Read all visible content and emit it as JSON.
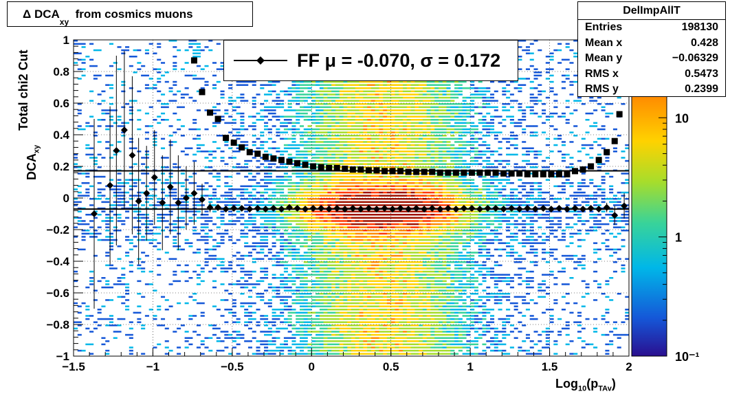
{
  "title": {
    "main": "Δ DCA",
    "sub": "xy",
    "rest": "from cosmics muons"
  },
  "stats": {
    "name": "DelImpAllT",
    "rows": [
      {
        "k": "Entries",
        "v": "198130"
      },
      {
        "k": "Mean x",
        "v": "0.428"
      },
      {
        "k": "Mean y",
        "v": "−0.06329"
      },
      {
        "k": "RMS x",
        "v": "0.5473"
      },
      {
        "k": "RMS y",
        "v": "0.2399"
      }
    ]
  },
  "legend": {
    "text": "FF μ = -0.070, σ =   0.172"
  },
  "axis_labels": {
    "x_main": "Log",
    "x_sub1": "10",
    "x_mid": "(p",
    "x_sub2": "TAv",
    "x_end": ")",
    "y_main": "DCA",
    "y_sub": "xy",
    "y_extra": "Total chi2 Cut"
  },
  "chart_data": {
    "type": "heatmap",
    "xlim": [
      -1.5,
      2.0
    ],
    "ylim": [
      -1.0,
      1.0
    ],
    "x_ticks": [
      "−1.5",
      "−1",
      "−0.5",
      "0",
      "0.5",
      "1",
      "1.5",
      "2"
    ],
    "x_tick_values": [
      -1.5,
      -1,
      -0.5,
      0,
      0.5,
      1,
      1.5,
      2
    ],
    "y_ticks": [
      "−1",
      "−0.8",
      "−0.6",
      "−0.4",
      "−0.2",
      "0",
      "0.2",
      "0.4",
      "0.6",
      "0.8",
      "1"
    ],
    "y_tick_values": [
      -1,
      -0.8,
      -0.6,
      -0.4,
      -0.2,
      0,
      0.2,
      0.4,
      0.6,
      0.8,
      1
    ],
    "z_scale": "log",
    "z_ticks": [
      "10",
      "1",
      "10⁻¹"
    ],
    "z_tick_values": [
      10,
      1,
      0.1
    ],
    "grid": true,
    "color_palette": [
      "#2a0f8f",
      "#1557d8",
      "#00b7e8",
      "#38d39a",
      "#a6dd2c",
      "#ffd200",
      "#ff8c00",
      "#ff3a00",
      "#a01200"
    ],
    "fit_lines": {
      "mean": -0.07,
      "sigma": 0.172
    },
    "series": [
      {
        "name": "FF",
        "marker": "diamond",
        "points": [
          [
            -1.37,
            -0.1,
            0.6
          ],
          [
            -1.27,
            0.08,
            0.5
          ],
          [
            -1.23,
            0.3,
            0.6
          ],
          [
            -1.18,
            0.43,
            0.5
          ],
          [
            -1.13,
            0.27,
            0.5
          ],
          [
            -1.09,
            -0.02,
            0.4
          ],
          [
            -1.04,
            0.03,
            0.3
          ],
          [
            -0.99,
            0.13,
            0.3
          ],
          [
            -0.94,
            -0.03,
            0.3
          ],
          [
            -0.89,
            0.07,
            0.3
          ],
          [
            -0.84,
            -0.03,
            0.3
          ],
          [
            -0.79,
            0.0,
            0.2
          ],
          [
            -0.74,
            0.03,
            0.2
          ],
          [
            -0.69,
            -0.01,
            0.1
          ],
          [
            -0.64,
            -0.06,
            0.03
          ],
          [
            -0.59,
            -0.06,
            0.02
          ],
          [
            -0.54,
            -0.07,
            0.01
          ],
          [
            -0.49,
            -0.065,
            0.01
          ],
          [
            -0.44,
            -0.065,
            0.01
          ],
          [
            -0.39,
            -0.07,
            0.01
          ],
          [
            -0.34,
            -0.065,
            0.01
          ],
          [
            -0.29,
            -0.07,
            0.01
          ],
          [
            -0.24,
            -0.065,
            0.01
          ],
          [
            -0.19,
            -0.07,
            0.01
          ],
          [
            -0.14,
            -0.06,
            0.01
          ],
          [
            -0.09,
            -0.065,
            0.01
          ],
          [
            -0.04,
            -0.07,
            0.01
          ],
          [
            0.01,
            -0.065,
            0.01
          ],
          [
            0.06,
            -0.065,
            0.01
          ],
          [
            0.11,
            -0.07,
            0.01
          ],
          [
            0.16,
            -0.065,
            0.01
          ],
          [
            0.21,
            -0.07,
            0.01
          ],
          [
            0.26,
            -0.065,
            0.01
          ],
          [
            0.31,
            -0.07,
            0.01
          ],
          [
            0.36,
            -0.065,
            0.01
          ],
          [
            0.41,
            -0.07,
            0.01
          ],
          [
            0.46,
            -0.065,
            0.01
          ],
          [
            0.51,
            -0.07,
            0.01
          ],
          [
            0.56,
            -0.065,
            0.01
          ],
          [
            0.61,
            -0.07,
            0.01
          ],
          [
            0.66,
            -0.065,
            0.01
          ],
          [
            0.71,
            -0.07,
            0.01
          ],
          [
            0.76,
            -0.065,
            0.01
          ],
          [
            0.81,
            -0.07,
            0.01
          ],
          [
            0.86,
            -0.065,
            0.01
          ],
          [
            0.91,
            -0.07,
            0.01
          ],
          [
            0.96,
            -0.065,
            0.01
          ],
          [
            1.01,
            -0.065,
            0.01
          ],
          [
            1.06,
            -0.07,
            0.01
          ],
          [
            1.11,
            -0.065,
            0.01
          ],
          [
            1.16,
            -0.065,
            0.01
          ],
          [
            1.21,
            -0.07,
            0.01
          ],
          [
            1.26,
            -0.065,
            0.01
          ],
          [
            1.31,
            -0.07,
            0.01
          ],
          [
            1.36,
            -0.065,
            0.01
          ],
          [
            1.41,
            -0.07,
            0.01
          ],
          [
            1.46,
            -0.065,
            0.01
          ],
          [
            1.51,
            -0.07,
            0.01
          ],
          [
            1.56,
            -0.065,
            0.01
          ],
          [
            1.61,
            -0.07,
            0.01
          ],
          [
            1.66,
            -0.065,
            0.02
          ],
          [
            1.71,
            -0.07,
            0.02
          ],
          [
            1.76,
            -0.065,
            0.02
          ],
          [
            1.81,
            -0.07,
            0.02
          ],
          [
            1.86,
            -0.06,
            0.03
          ],
          [
            1.91,
            -0.11,
            0.06
          ],
          [
            1.97,
            -0.05,
            0.08
          ]
        ]
      },
      {
        "name": "sigma",
        "marker": "square",
        "points": [
          [
            -0.74,
            0.87
          ],
          [
            -0.69,
            0.67
          ],
          [
            -0.64,
            0.54
          ],
          [
            -0.59,
            0.5
          ],
          [
            -0.54,
            0.38
          ],
          [
            -0.49,
            0.35
          ],
          [
            -0.44,
            0.32
          ],
          [
            -0.39,
            0.29
          ],
          [
            -0.34,
            0.28
          ],
          [
            -0.29,
            0.26
          ],
          [
            -0.24,
            0.25
          ],
          [
            -0.19,
            0.24
          ],
          [
            -0.14,
            0.23
          ],
          [
            -0.09,
            0.22
          ],
          [
            -0.04,
            0.21
          ],
          [
            0.01,
            0.2
          ],
          [
            0.06,
            0.195
          ],
          [
            0.11,
            0.19
          ],
          [
            0.16,
            0.19
          ],
          [
            0.21,
            0.185
          ],
          [
            0.26,
            0.18
          ],
          [
            0.31,
            0.18
          ],
          [
            0.36,
            0.175
          ],
          [
            0.41,
            0.175
          ],
          [
            0.46,
            0.17
          ],
          [
            0.51,
            0.17
          ],
          [
            0.56,
            0.17
          ],
          [
            0.61,
            0.165
          ],
          [
            0.66,
            0.165
          ],
          [
            0.71,
            0.165
          ],
          [
            0.76,
            0.165
          ],
          [
            0.81,
            0.16
          ],
          [
            0.86,
            0.16
          ],
          [
            0.91,
            0.16
          ],
          [
            0.96,
            0.16
          ],
          [
            1.01,
            0.16
          ],
          [
            1.06,
            0.16
          ],
          [
            1.11,
            0.16
          ],
          [
            1.16,
            0.16
          ],
          [
            1.21,
            0.155
          ],
          [
            1.26,
            0.155
          ],
          [
            1.31,
            0.155
          ],
          [
            1.36,
            0.15
          ],
          [
            1.41,
            0.15
          ],
          [
            1.46,
            0.15
          ],
          [
            1.51,
            0.15
          ],
          [
            1.56,
            0.15
          ],
          [
            1.61,
            0.15
          ],
          [
            1.66,
            0.17
          ],
          [
            1.71,
            0.18
          ],
          [
            1.76,
            0.2
          ],
          [
            1.81,
            0.24
          ],
          [
            1.86,
            0.29
          ],
          [
            1.91,
            0.36
          ],
          [
            1.94,
            0.53
          ],
          [
            1.97,
            0.67
          ]
        ]
      }
    ]
  }
}
